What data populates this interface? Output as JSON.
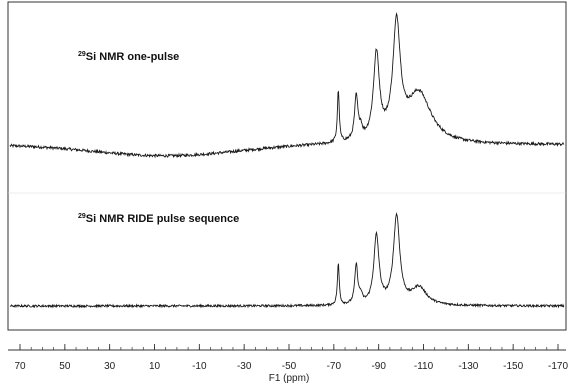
{
  "chart_data": {
    "type": "line",
    "title": "",
    "xlabel": "F1 (ppm)",
    "ylabel": "",
    "xlim": [
      70,
      -170
    ],
    "x_reversed": true,
    "x_ticks": [
      70,
      50,
      30,
      10,
      -10,
      -30,
      -50,
      -70,
      -90,
      -110,
      -130,
      -150,
      -170
    ],
    "x_tick_labels": [
      "70",
      "50",
      "30",
      "10",
      "-10",
      "-30",
      "-50",
      "-70",
      "-90",
      "-110",
      "-130",
      "-150",
      "-170"
    ],
    "grid": false,
    "panels": [
      {
        "label_nucleus": "29",
        "label_text": "Si NMR one-pulse",
        "baseline": "broad",
        "peaks": [
          {
            "ppm": -72,
            "intensity": 0.42,
            "width": 0.5
          },
          {
            "ppm": -80,
            "intensity": 0.35,
            "width": 0.9
          },
          {
            "ppm": -82,
            "intensity": 0.08,
            "width": 0.8
          },
          {
            "ppm": -89,
            "intensity": 0.68,
            "width": 1.6
          },
          {
            "ppm": -98,
            "intensity": 0.9,
            "width": 2.0
          },
          {
            "ppm": -108,
            "intensity": 0.4,
            "width": 6.5
          }
        ]
      },
      {
        "label_nucleus": "29",
        "label_text": "Si NMR  RIDE pulse sequence",
        "baseline": "flat",
        "peaks": [
          {
            "ppm": -72,
            "intensity": 0.42,
            "width": 0.5
          },
          {
            "ppm": -80,
            "intensity": 0.4,
            "width": 0.8
          },
          {
            "ppm": -82,
            "intensity": 0.08,
            "width": 0.8
          },
          {
            "ppm": -89,
            "intensity": 0.7,
            "width": 1.4
          },
          {
            "ppm": -98,
            "intensity": 0.9,
            "width": 1.7
          },
          {
            "ppm": -108,
            "intensity": 0.18,
            "width": 4.0
          }
        ]
      }
    ]
  }
}
